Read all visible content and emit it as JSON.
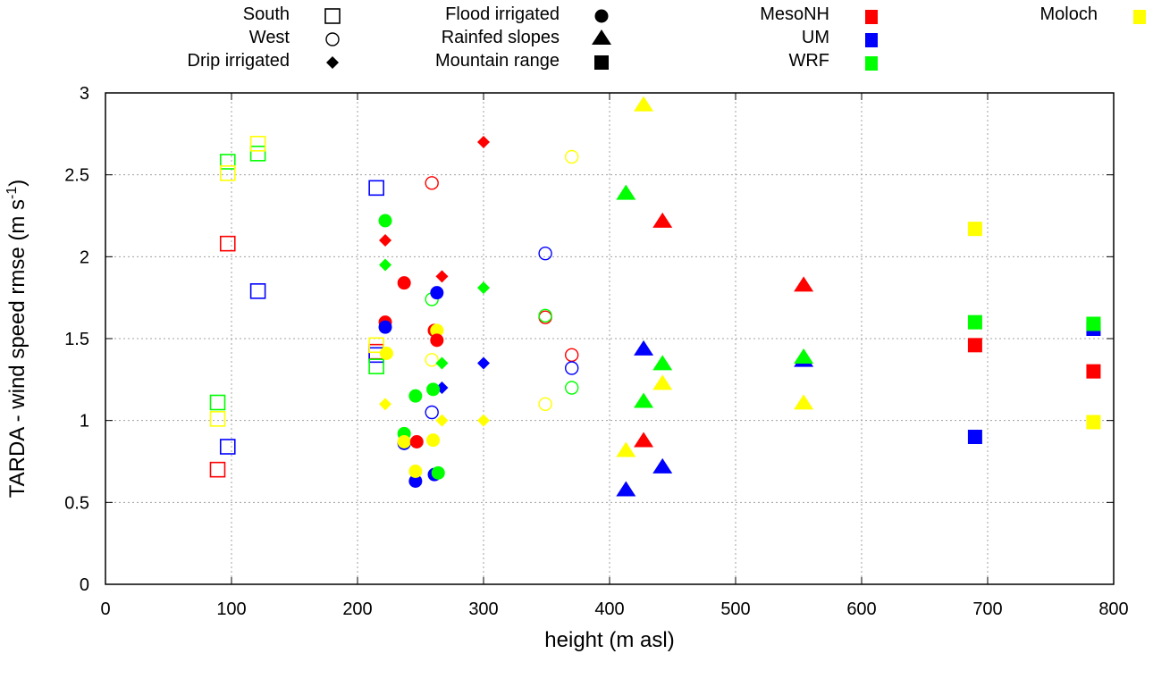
{
  "chart_data": {
    "type": "scatter",
    "title": "",
    "xlabel": "height (m asl)",
    "ylabel_main": "TARDA - wind speed rmse (m s",
    "ylabel_sup": "-1",
    "ylabel_close": ")",
    "xlim": [
      0,
      800
    ],
    "ylim": [
      0,
      3
    ],
    "xticks": [
      "0",
      "100",
      "200",
      "300",
      "400",
      "500",
      "600",
      "700",
      "800"
    ],
    "yticks": [
      "0",
      "0.5",
      "1",
      "1.5",
      "2",
      "2.5",
      "3"
    ],
    "grid": true,
    "legend_placement": "top (above plot)",
    "legend_sites": [
      {
        "label": "South",
        "marker": "open-square"
      },
      {
        "label": "West",
        "marker": "open-circle"
      },
      {
        "label": "Drip irrigated",
        "marker": "filled-diamond"
      },
      {
        "label": "Flood irrigated",
        "marker": "filled-circle"
      },
      {
        "label": "Rainfed slopes",
        "marker": "filled-triangle"
      },
      {
        "label": "Mountain range",
        "marker": "filled-square"
      }
    ],
    "legend_models": [
      {
        "label": "MesoNH",
        "color": "#ff0000"
      },
      {
        "label": "UM",
        "color": "#0000ff"
      },
      {
        "label": "WRF",
        "color": "#00ff00"
      },
      {
        "label": "Moloch",
        "color": "#ffff00"
      }
    ],
    "series": [
      {
        "site": "South",
        "marker": "open-square",
        "points": [
          {
            "model": "MesoNH",
            "x": 97,
            "y": 2.08
          },
          {
            "model": "UM",
            "x": 121,
            "y": 1.79
          },
          {
            "model": "WRF",
            "x": 97,
            "y": 2.58
          },
          {
            "model": "Moloch",
            "x": 97,
            "y": 2.51
          },
          {
            "model": "WRF",
            "x": 121,
            "y": 2.63
          },
          {
            "model": "Moloch",
            "x": 121,
            "y": 2.69
          },
          {
            "model": "MesoNH",
            "x": 89,
            "y": 0.7
          },
          {
            "model": "UM",
            "x": 97,
            "y": 0.84
          },
          {
            "model": "WRF",
            "x": 89,
            "y": 1.11
          },
          {
            "model": "Moloch",
            "x": 89,
            "y": 1.01
          },
          {
            "model": "UM",
            "x": 215,
            "y": 2.42
          },
          {
            "model": "MesoNH",
            "x": 215,
            "y": 1.42
          },
          {
            "model": "UM",
            "x": 215,
            "y": 1.4
          },
          {
            "model": "WRF",
            "x": 215,
            "y": 1.33
          },
          {
            "model": "Moloch",
            "x": 215,
            "y": 1.46
          }
        ]
      },
      {
        "site": "West",
        "marker": "open-circle",
        "points": [
          {
            "model": "MesoNH",
            "x": 259,
            "y": 2.45
          },
          {
            "model": "WRF",
            "x": 259,
            "y": 1.74
          },
          {
            "model": "UM",
            "x": 259,
            "y": 1.05
          },
          {
            "model": "Moloch",
            "x": 259,
            "y": 1.37
          },
          {
            "model": "UM",
            "x": 349,
            "y": 2.02
          },
          {
            "model": "MesoNH",
            "x": 349,
            "y": 1.63
          },
          {
            "model": "WRF",
            "x": 349,
            "y": 1.64
          },
          {
            "model": "Moloch",
            "x": 349,
            "y": 1.1
          },
          {
            "model": "MesoNH",
            "x": 370,
            "y": 1.4
          },
          {
            "model": "UM",
            "x": 370,
            "y": 1.32
          },
          {
            "model": "WRF",
            "x": 370,
            "y": 1.2
          },
          {
            "model": "Moloch",
            "x": 370,
            "y": 2.61
          }
        ]
      },
      {
        "site": "Drip irrigated",
        "marker": "filled-diamond",
        "points": [
          {
            "model": "MesoNH",
            "x": 222,
            "y": 2.1
          },
          {
            "model": "WRF",
            "x": 222,
            "y": 1.95
          },
          {
            "model": "Moloch",
            "x": 222,
            "y": 1.1
          },
          {
            "model": "MesoNH",
            "x": 267,
            "y": 1.88
          },
          {
            "model": "UM",
            "x": 267,
            "y": 1.2
          },
          {
            "model": "WRF",
            "x": 267,
            "y": 1.35
          },
          {
            "model": "Moloch",
            "x": 267,
            "y": 1.0
          },
          {
            "model": "MesoNH",
            "x": 300,
            "y": 2.7
          },
          {
            "model": "UM",
            "x": 300,
            "y": 1.35
          },
          {
            "model": "WRF",
            "x": 300,
            "y": 1.81
          },
          {
            "model": "Moloch",
            "x": 300,
            "y": 1.0
          }
        ]
      },
      {
        "site": "Flood irrigated",
        "marker": "filled-circle",
        "points": [
          {
            "model": "WRF",
            "x": 222,
            "y": 2.22
          },
          {
            "model": "MesoNH",
            "x": 222,
            "y": 1.6
          },
          {
            "model": "UM",
            "x": 222,
            "y": 1.57
          },
          {
            "model": "Moloch",
            "x": 223,
            "y": 1.41
          },
          {
            "model": "MesoNH",
            "x": 237,
            "y": 1.84
          },
          {
            "model": "WRF",
            "x": 237,
            "y": 0.92
          },
          {
            "model": "UM",
            "x": 237,
            "y": 0.86
          },
          {
            "model": "Moloch",
            "x": 237,
            "y": 0.87
          },
          {
            "model": "WRF",
            "x": 246,
            "y": 1.15
          },
          {
            "model": "MesoNH",
            "x": 247,
            "y": 0.87
          },
          {
            "model": "UM",
            "x": 246,
            "y": 0.63
          },
          {
            "model": "Moloch",
            "x": 246,
            "y": 0.69
          },
          {
            "model": "UM",
            "x": 263,
            "y": 1.78
          },
          {
            "model": "MesoNH",
            "x": 261,
            "y": 1.55
          },
          {
            "model": "Moloch",
            "x": 263,
            "y": 1.55
          },
          {
            "model": "MesoNH",
            "x": 263,
            "y": 1.49
          },
          {
            "model": "WRF",
            "x": 260,
            "y": 1.19
          },
          {
            "model": "Moloch",
            "x": 260,
            "y": 0.88
          },
          {
            "model": "UM",
            "x": 261,
            "y": 0.67
          },
          {
            "model": "WRF",
            "x": 264,
            "y": 0.68
          }
        ]
      },
      {
        "site": "Rainfed slopes",
        "marker": "filled-triangle",
        "points": [
          {
            "model": "Moloch",
            "x": 427,
            "y": 2.92
          },
          {
            "model": "WRF",
            "x": 413,
            "y": 2.38
          },
          {
            "model": "MesoNH",
            "x": 442,
            "y": 2.21
          },
          {
            "model": "UM",
            "x": 427,
            "y": 1.43
          },
          {
            "model": "WRF",
            "x": 442,
            "y": 1.34
          },
          {
            "model": "Moloch",
            "x": 442,
            "y": 1.22
          },
          {
            "model": "WRF",
            "x": 427,
            "y": 1.11
          },
          {
            "model": "MesoNH",
            "x": 427,
            "y": 0.87
          },
          {
            "model": "Moloch",
            "x": 413,
            "y": 0.81
          },
          {
            "model": "UM",
            "x": 442,
            "y": 0.71
          },
          {
            "model": "UM",
            "x": 413,
            "y": 0.57
          },
          {
            "model": "MesoNH",
            "x": 554,
            "y": 1.82
          },
          {
            "model": "UM",
            "x": 554,
            "y": 1.36
          },
          {
            "model": "WRF",
            "x": 554,
            "y": 1.38
          },
          {
            "model": "Moloch",
            "x": 554,
            "y": 1.1
          }
        ]
      },
      {
        "site": "Mountain range",
        "marker": "filled-square",
        "points": [
          {
            "model": "Moloch",
            "x": 690,
            "y": 2.17
          },
          {
            "model": "WRF",
            "x": 690,
            "y": 1.6
          },
          {
            "model": "MesoNH",
            "x": 690,
            "y": 1.46
          },
          {
            "model": "UM",
            "x": 690,
            "y": 0.9
          },
          {
            "model": "UM",
            "x": 784,
            "y": 1.56
          },
          {
            "model": "WRF",
            "x": 784,
            "y": 1.59
          },
          {
            "model": "MesoNH",
            "x": 784,
            "y": 1.3
          },
          {
            "model": "Moloch",
            "x": 784,
            "y": 0.99
          }
        ]
      }
    ]
  }
}
